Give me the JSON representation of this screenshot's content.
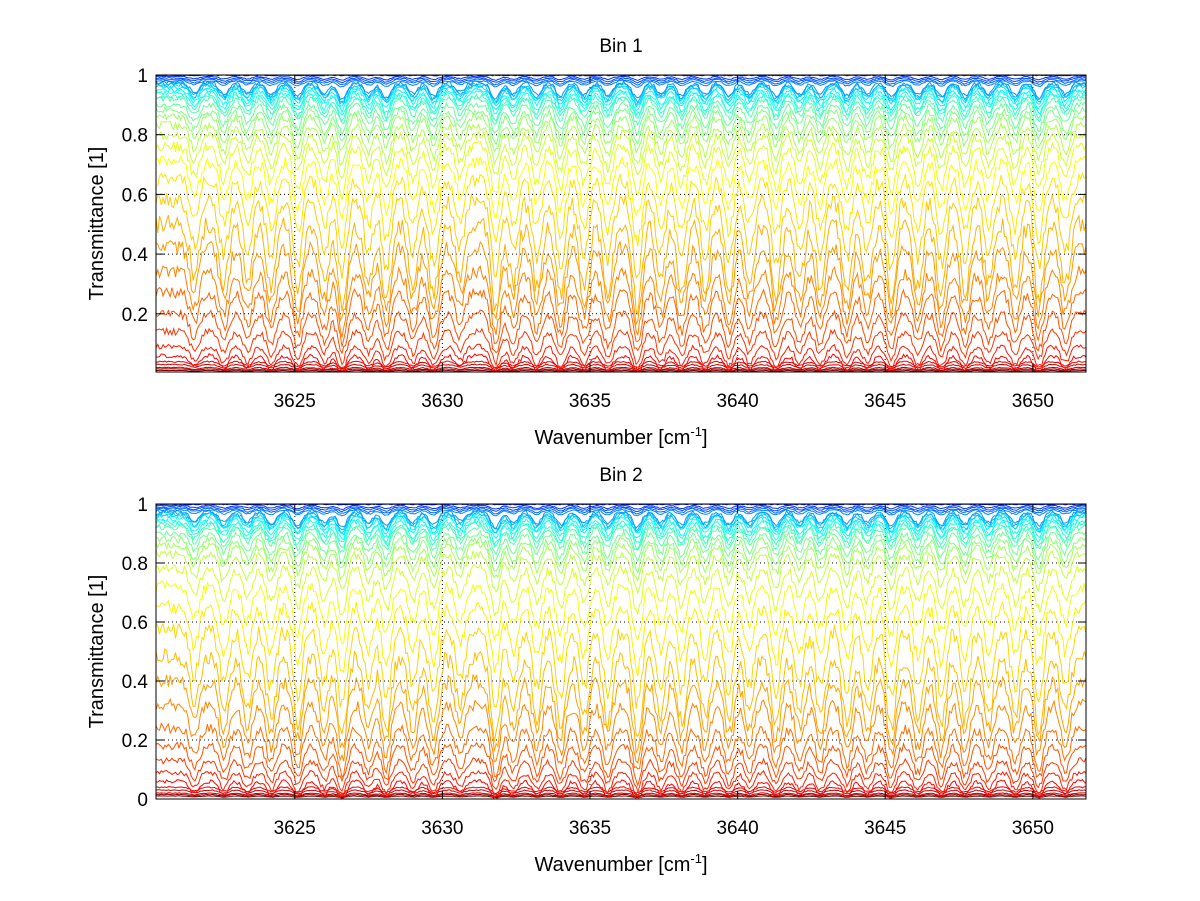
{
  "chart_data": [
    {
      "type": "line",
      "title": "Bin 1",
      "xlabel": "Wavenumber [cm",
      "xlabel_sup": "-1",
      "xlabel_end": "]",
      "ylabel": "Transmittance [1]",
      "xlim": [
        3620.3,
        3651.8
      ],
      "ylim": [
        0.005,
        1.0
      ],
      "xticks": [
        3625,
        3630,
        3635,
        3640,
        3645,
        3650
      ],
      "xtick_labels": [
        "3625",
        "3630",
        "3635",
        "3640",
        "3645",
        "3650"
      ],
      "yticks": [
        0.2,
        0.4,
        0.6,
        0.8,
        1
      ],
      "ytick_labels": [
        "0.2",
        "0.4",
        "0.6",
        "0.8",
        "1"
      ],
      "grid": true,
      "series_count": 40,
      "colormap": "jet",
      "description_levels": [
        1.0,
        0.995,
        0.99,
        0.985,
        0.98,
        0.975,
        0.97,
        0.965,
        0.96,
        0.95,
        0.94,
        0.93,
        0.92,
        0.9,
        0.88,
        0.86,
        0.83,
        0.8,
        0.76,
        0.71,
        0.65,
        0.58,
        0.5,
        0.42,
        0.34,
        0.27,
        0.2,
        0.14,
        0.09,
        0.06,
        0.04,
        0.03,
        0.02,
        0.015,
        0.01
      ]
    },
    {
      "type": "line",
      "title": "Bin 2",
      "xlabel": "Wavenumber [cm",
      "xlabel_sup": "-1",
      "xlabel_end": "]",
      "ylabel": "Transmittance [1]",
      "xlim": [
        3620.3,
        3651.8
      ],
      "ylim": [
        0,
        1.0
      ],
      "xticks": [
        3625,
        3630,
        3635,
        3640,
        3645,
        3650
      ],
      "xtick_labels": [
        "3625",
        "3630",
        "3635",
        "3640",
        "3645",
        "3650"
      ],
      "yticks": [
        0,
        0.2,
        0.4,
        0.6,
        0.8,
        1
      ],
      "ytick_labels": [
        "0",
        "0.2",
        "0.4",
        "0.6",
        "0.8",
        "1"
      ],
      "grid": true,
      "series_count": 40,
      "colormap": "jet",
      "description_levels": [
        1.0,
        0.995,
        0.99,
        0.985,
        0.98,
        0.975,
        0.97,
        0.965,
        0.96,
        0.95,
        0.94,
        0.93,
        0.92,
        0.9,
        0.88,
        0.86,
        0.83,
        0.78,
        0.72,
        0.65,
        0.57,
        0.48,
        0.4,
        0.32,
        0.24,
        0.18,
        0.13,
        0.09,
        0.06,
        0.04,
        0.03,
        0.02,
        0.015,
        0.01
      ]
    }
  ],
  "line_centers": [
    3621.6,
    3622.6,
    3623.4,
    3624.2,
    3625.1,
    3626.0,
    3626.6,
    3627.5,
    3628.1,
    3629.0,
    3629.7,
    3630.6,
    3631.8,
    3632.4,
    3633.2,
    3634.0,
    3634.8,
    3635.6,
    3636.6,
    3637.4,
    3638.1,
    3638.9,
    3639.7,
    3640.4,
    3641.3,
    3642.1,
    3642.8,
    3643.7,
    3644.4,
    3645.2,
    3646.1,
    3646.9,
    3647.7,
    3648.5,
    3649.4,
    3650.2,
    3651.1
  ],
  "line_strengths": [
    0.6,
    0.7,
    0.65,
    0.75,
    0.85,
    0.7,
    1.0,
    0.7,
    0.9,
    0.7,
    0.85,
    0.6,
    1.0,
    0.7,
    0.75,
    0.85,
    0.75,
    0.8,
    1.0,
    0.7,
    0.8,
    0.75,
    0.8,
    0.7,
    0.85,
    0.7,
    0.75,
    0.8,
    0.7,
    0.9,
    0.75,
    0.85,
    0.8,
    0.7,
    0.75,
    0.9,
    0.7
  ]
}
